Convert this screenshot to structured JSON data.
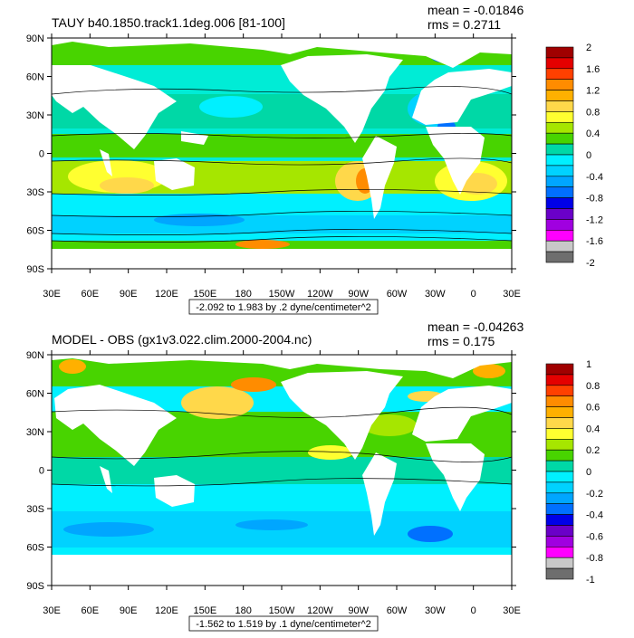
{
  "panels": [
    {
      "title": "TAUY b40.1850.track1.1deg.006 [81-100]",
      "mean": "mean = -0.01846",
      "rms": "rms = 0.2711",
      "range_label": "-2.092 to 1.983 by .2 dyne/centimeter^2",
      "lat_labels": [
        "90N",
        "60N",
        "30N",
        "0",
        "30S",
        "60S",
        "90S"
      ],
      "lon_labels": [
        "30E",
        "60E",
        "90E",
        "120E",
        "150E",
        "180",
        "150W",
        "120W",
        "90W",
        "60W",
        "30W",
        "0",
        "30E"
      ],
      "legend_labels": [
        "2",
        "1.6",
        "1.2",
        "0.8",
        "0.4",
        "0",
        "-0.4",
        "-0.8",
        "-1.2",
        "-1.6",
        "-2"
      ],
      "legend_colors": [
        "#a00000",
        "#e40000",
        "#ff4000",
        "#ff8c00",
        "#ffb000",
        "#ffd84a",
        "#ffff30",
        "#a6e600",
        "#48d400",
        "#00d8a6",
        "#00f0ff",
        "#00d2ff",
        "#00a6ff",
        "#0070ff",
        "#0000e8",
        "#6a00c8",
        "#a000e0",
        "#ff00ff",
        "#c8c8c8",
        "#6e6e6e"
      ]
    },
    {
      "title": "MODEL - OBS (gx1v3.022.clim.2000-2004.nc)",
      "mean": "mean = -0.04263",
      "rms": "rms = 0.175",
      "range_label": "-1.562 to 1.519 by .1 dyne/centimeter^2",
      "lat_labels": [
        "90N",
        "60N",
        "30N",
        "0",
        "30S",
        "60S",
        "90S"
      ],
      "lon_labels": [
        "30E",
        "60E",
        "90E",
        "120E",
        "150E",
        "180",
        "150W",
        "120W",
        "90W",
        "60W",
        "30W",
        "0",
        "30E"
      ],
      "legend_labels": [
        "1",
        "0.8",
        "0.6",
        "0.4",
        "0.2",
        "0",
        "-0.2",
        "-0.4",
        "-0.6",
        "-0.8",
        "-1"
      ],
      "legend_colors": [
        "#a00000",
        "#e40000",
        "#ff4000",
        "#ff8c00",
        "#ffb000",
        "#ffd84a",
        "#ffff30",
        "#a6e600",
        "#48d400",
        "#00d8a6",
        "#00f0ff",
        "#00d2ff",
        "#00a6ff",
        "#0070ff",
        "#0000e8",
        "#6a00c8",
        "#a000e0",
        "#ff00ff",
        "#c8c8c8",
        "#6e6e6e"
      ]
    }
  ]
}
